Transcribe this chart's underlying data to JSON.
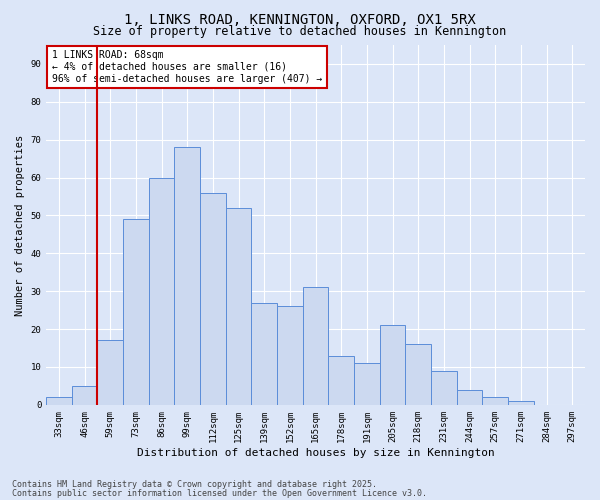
{
  "title1": "1, LINKS ROAD, KENNINGTON, OXFORD, OX1 5RX",
  "title2": "Size of property relative to detached houses in Kennington",
  "xlabel": "Distribution of detached houses by size in Kennington",
  "ylabel": "Number of detached properties",
  "categories": [
    "33sqm",
    "46sqm",
    "59sqm",
    "73sqm",
    "86sqm",
    "99sqm",
    "112sqm",
    "125sqm",
    "139sqm",
    "152sqm",
    "165sqm",
    "178sqm",
    "191sqm",
    "205sqm",
    "218sqm",
    "231sqm",
    "244sqm",
    "257sqm",
    "271sqm",
    "284sqm",
    "297sqm"
  ],
  "bar_heights": [
    2,
    5,
    17,
    49,
    60,
    68,
    56,
    52,
    27,
    26,
    31,
    13,
    11,
    21,
    16,
    9,
    4,
    2,
    1,
    0,
    0
  ],
  "bar_color": "#ccd9f0",
  "bar_edge_color": "#5b8dd9",
  "bg_color": "#dce6f8",
  "grid_color": "#ffffff",
  "vline_x_idx": 2,
  "vline_color": "#cc0000",
  "annotation_text": "1 LINKS ROAD: 68sqm\n← 4% of detached houses are smaller (16)\n96% of semi-detached houses are larger (407) →",
  "annotation_box_color": "#ffffff",
  "annotation_box_edge": "#cc0000",
  "footer1": "Contains HM Land Registry data © Crown copyright and database right 2025.",
  "footer2": "Contains public sector information licensed under the Open Government Licence v3.0.",
  "ylim": [
    0,
    95
  ],
  "yticks": [
    0,
    10,
    20,
    30,
    40,
    50,
    60,
    70,
    80,
    90
  ],
  "title1_fontsize": 10,
  "title2_fontsize": 8.5,
  "xlabel_fontsize": 8,
  "ylabel_fontsize": 7.5,
  "tick_fontsize": 6.5,
  "ann_fontsize": 7,
  "footer_fontsize": 6,
  "figsize": [
    6.0,
    5.0
  ],
  "dpi": 100
}
